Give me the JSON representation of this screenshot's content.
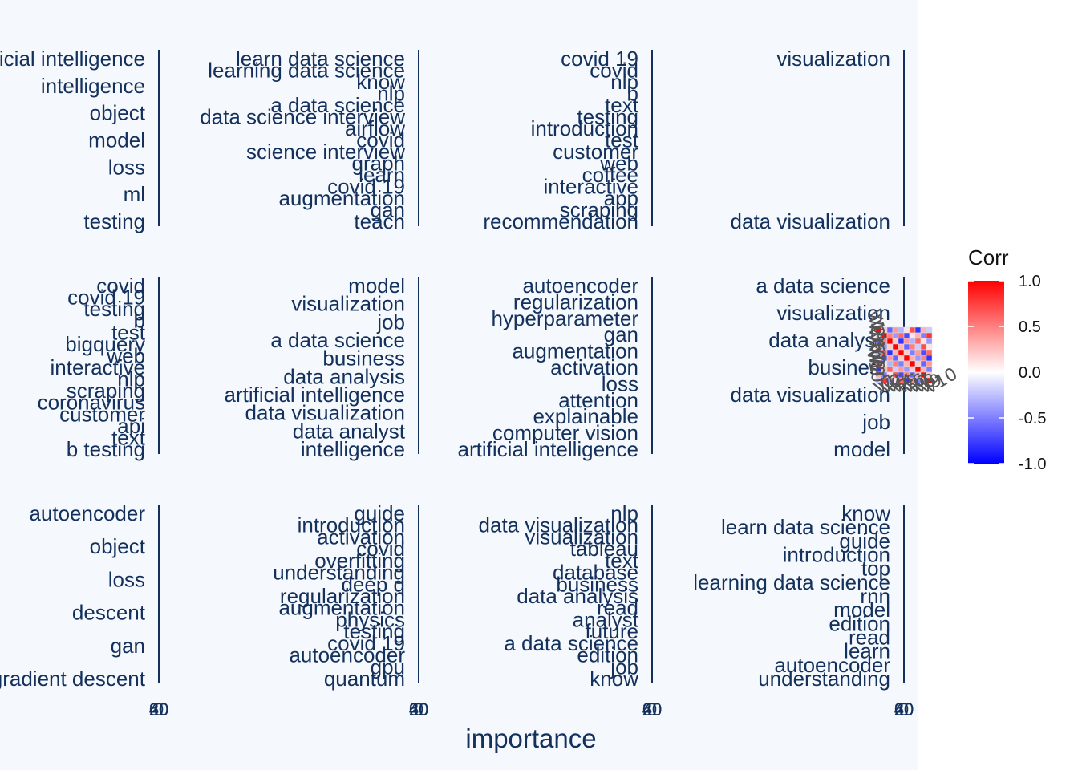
{
  "chart_data": {
    "type": "bar",
    "xlabel": "importance",
    "x_tick_labels": [
      "0",
      "20",
      "40",
      "60"
    ],
    "panels": [
      {
        "terms": [
          "artificial intelligence",
          "intelligence",
          "object",
          "model",
          "loss",
          "ml",
          "testing"
        ]
      },
      {
        "terms": [
          "learn data science",
          "learning data science",
          "know",
          "nlp",
          "a data science",
          "data science interview",
          "airflow",
          "covid",
          "science interview",
          "graph",
          "learn",
          "covid 19",
          "augmentation",
          "gan",
          "teach"
        ]
      },
      {
        "terms": [
          "covid 19",
          "covid",
          "nlp",
          "b",
          "text",
          "testing",
          "introduction",
          "test",
          "customer",
          "web",
          "coffee",
          "interactive",
          "app",
          "scraping",
          "recommendation"
        ]
      },
      {
        "terms": [
          "visualization",
          "data visualization"
        ]
      },
      {
        "terms": [
          "covid",
          "covid 19",
          "testing",
          "b",
          "test",
          "bigquery",
          "web",
          "interactive",
          "nlp",
          "scraping",
          "coronavirus",
          "customer",
          "api",
          "text",
          "b testing"
        ]
      },
      {
        "terms": [
          "model",
          "visualization",
          "job",
          "a data science",
          "business",
          "data analysis",
          "artificial intelligence",
          "data visualization",
          "data analyst",
          "intelligence"
        ]
      },
      {
        "terms": [
          "autoencoder",
          "regularization",
          "hyperparameter",
          "gan",
          "augmentation",
          "activation",
          "loss",
          "attention",
          "explainable",
          "computer vision",
          "artificial intelligence"
        ]
      },
      {
        "terms": [
          "a data science",
          "visualization",
          "data analysis",
          "business",
          "data visualization",
          "job",
          "model"
        ]
      },
      {
        "terms": [
          "autoencoder",
          "object",
          "loss",
          "descent",
          "gan",
          "gradient descent"
        ]
      },
      {
        "terms": [
          "guide",
          "introduction",
          "activation",
          "covid",
          "overfitting",
          "understanding",
          "deep q",
          "regularization",
          "augmentation",
          "physics",
          "testing",
          "covid 19",
          "autoencoder",
          "gpu",
          "quantum"
        ]
      },
      {
        "terms": [
          "nlp",
          "data visualization",
          "visualization",
          "tableau",
          "text",
          "database",
          "business",
          "data analysis",
          "read",
          "analyst",
          "future",
          "a data science",
          "edition",
          "job",
          "know"
        ]
      },
      {
        "terms": [
          "know",
          "learn data science",
          "guide",
          "introduction",
          "top",
          "learning data science",
          "rnn",
          "model",
          "edition",
          "read",
          "learn",
          "autoencoder",
          "understanding"
        ]
      }
    ],
    "legend": {
      "title": "Corr",
      "labels": [
        "1.0",
        "0.5",
        "0.0",
        "-0.5",
        "-1.0"
      ],
      "range": [
        -1.0,
        1.0
      ],
      "colors": {
        "low": "#0000ff",
        "mid": "#ffffff",
        "high": "#ff0000"
      }
    },
    "inset_heatmap": {
      "rows": 10,
      "cols": 10,
      "row_labels": [
        "V1",
        "V2",
        "V3",
        "V4",
        "V5",
        "V6",
        "V7",
        "V8",
        "V9",
        "V10"
      ],
      "col_labels": [
        "V1",
        "V2",
        "V3",
        "V4",
        "V5",
        "V6",
        "V7",
        "V8",
        "V9",
        "V10"
      ],
      "values": [
        [
          1.0,
          0.2,
          -0.6,
          0.4,
          -0.3,
          0.1,
          0.7,
          -0.8,
          0.3,
          -0.2
        ],
        [
          0.2,
          1.0,
          0.5,
          -0.4,
          0.6,
          -0.7,
          0.1,
          0.3,
          -0.5,
          0.8
        ],
        [
          -0.6,
          0.5,
          1.0,
          0.2,
          -0.8,
          0.4,
          -0.3,
          0.6,
          0.1,
          -0.4
        ],
        [
          0.4,
          -0.4,
          0.2,
          1.0,
          0.3,
          -0.6,
          0.5,
          -0.2,
          0.7,
          0.1
        ],
        [
          -0.3,
          0.6,
          -0.8,
          0.3,
          1.0,
          0.2,
          -0.5,
          0.4,
          -0.7,
          0.6
        ],
        [
          0.1,
          -0.7,
          0.4,
          -0.6,
          0.2,
          1.0,
          0.3,
          -0.4,
          0.5,
          -0.8
        ],
        [
          0.7,
          0.1,
          -0.3,
          0.5,
          -0.5,
          0.3,
          1.0,
          0.2,
          -0.6,
          0.4
        ],
        [
          -0.8,
          0.3,
          0.6,
          -0.2,
          0.4,
          -0.4,
          0.2,
          1.0,
          0.3,
          -0.5
        ],
        [
          0.3,
          -0.5,
          0.1,
          0.7,
          -0.7,
          0.5,
          -0.6,
          0.3,
          1.0,
          0.2
        ],
        [
          -0.2,
          0.8,
          -0.4,
          0.1,
          0.6,
          -0.8,
          0.4,
          -0.5,
          0.2,
          1.0
        ]
      ]
    }
  }
}
